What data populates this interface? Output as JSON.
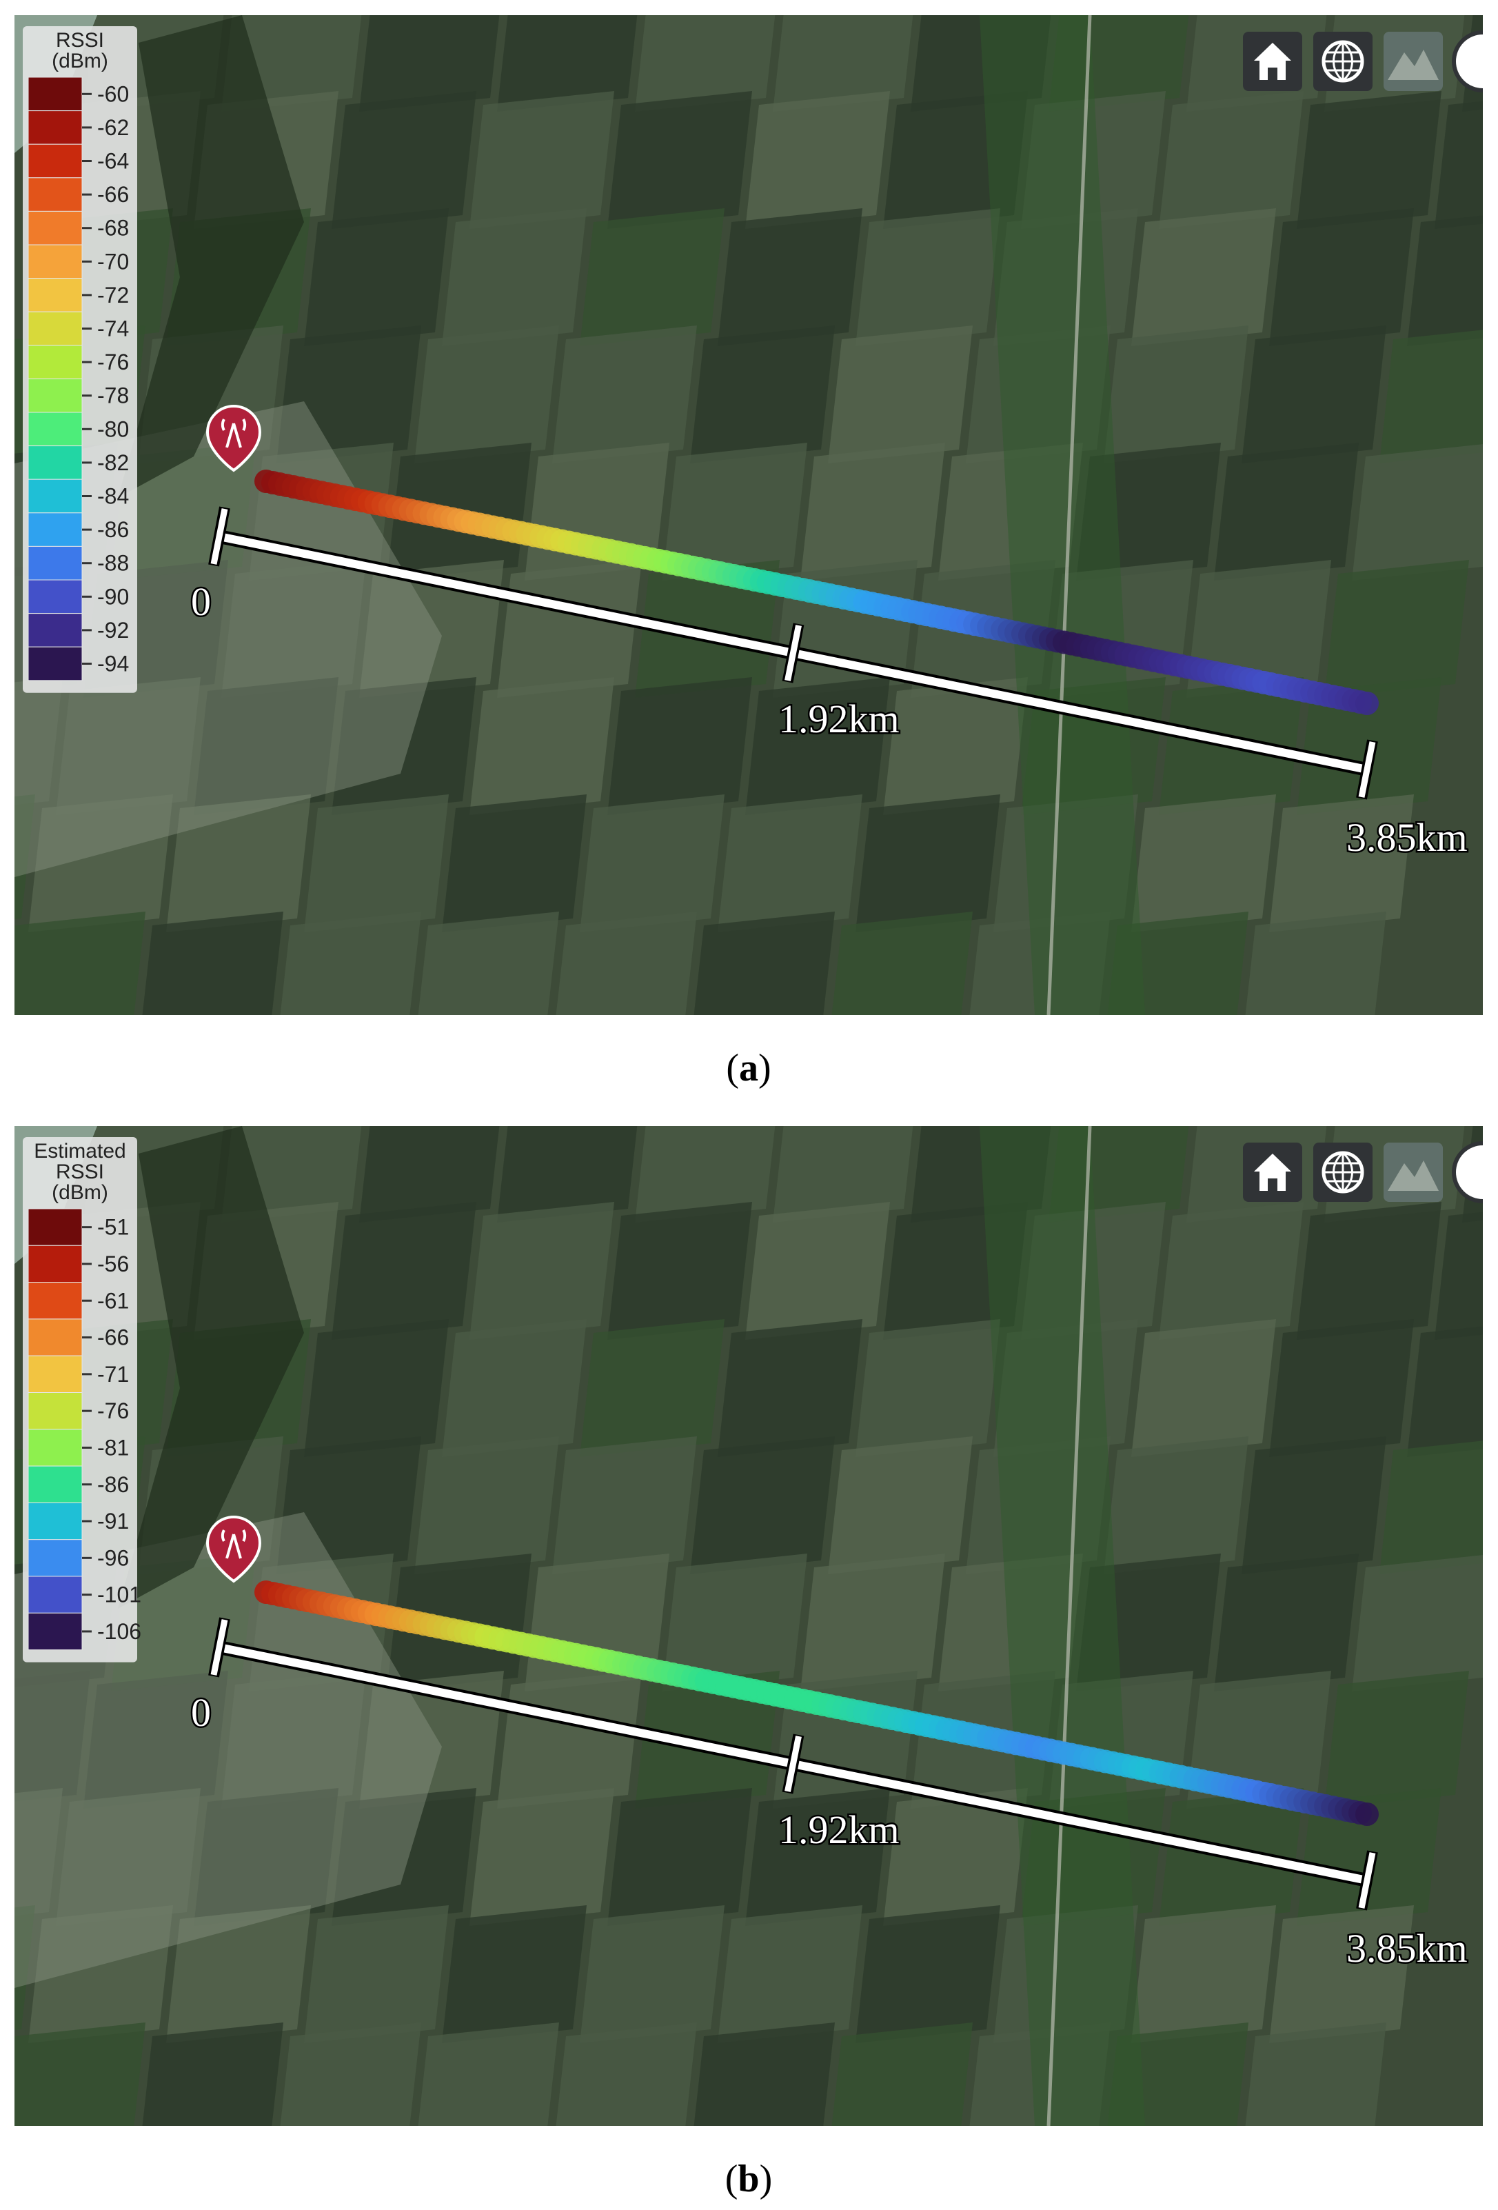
{
  "panels": [
    {
      "legend": {
        "title": [
          "RSSI",
          "(dBm)"
        ],
        "entries": [
          {
            "label": "-60",
            "color": "#6e0b0b"
          },
          {
            "label": "-62",
            "color": "#a3150c"
          },
          {
            "label": "-64",
            "color": "#c92a0d"
          },
          {
            "label": "-66",
            "color": "#e2541a"
          },
          {
            "label": "-68",
            "color": "#f07b2a"
          },
          {
            "label": "-70",
            "color": "#f5a33a"
          },
          {
            "label": "-72",
            "color": "#f2c441"
          },
          {
            "label": "-74",
            "color": "#d8d93a"
          },
          {
            "label": "-76",
            "color": "#b2ea3a"
          },
          {
            "label": "-78",
            "color": "#8ef04e"
          },
          {
            "label": "-80",
            "color": "#4ded7a"
          },
          {
            "label": "-82",
            "color": "#22d6a4"
          },
          {
            "label": "-84",
            "color": "#1fbfd6"
          },
          {
            "label": "-86",
            "color": "#2fa2ef"
          },
          {
            "label": "-88",
            "color": "#3d79ea"
          },
          {
            "label": "-90",
            "color": "#4351c9"
          },
          {
            "label": "-92",
            "color": "#3b2c8c"
          },
          {
            "label": "-94",
            "color": "#2b1650"
          }
        ]
      },
      "track_colors": [
        "#8a0f0f",
        "#c9300f",
        "#f0a03a",
        "#d8d93a",
        "#8ef04e",
        "#22d6a4",
        "#2fa2ef",
        "#3d79ea",
        "#2b1650",
        "#3b2c8c",
        "#4351c9",
        "#3b2c8c"
      ],
      "scale": [
        "0",
        "1.92km",
        "3.85km"
      ],
      "caption": {
        "open": "(",
        "letter": "a",
        "close": ")"
      }
    },
    {
      "legend": {
        "title": [
          "Estimated",
          "RSSI",
          "(dBm)"
        ],
        "entries": [
          {
            "label": "-51",
            "color": "#6e0b0b"
          },
          {
            "label": "-56",
            "color": "#b51c0c"
          },
          {
            "label": "-61",
            "color": "#df4a16"
          },
          {
            "label": "-66",
            "color": "#f0892d"
          },
          {
            "label": "-71",
            "color": "#f2c441"
          },
          {
            "label": "-76",
            "color": "#c5e23a"
          },
          {
            "label": "-81",
            "color": "#8ef04e"
          },
          {
            "label": "-86",
            "color": "#2ee08f"
          },
          {
            "label": "-91",
            "color": "#1fbfd6"
          },
          {
            "label": "-96",
            "color": "#3a8cef"
          },
          {
            "label": "-101",
            "color": "#4351c9"
          },
          {
            "label": "-106",
            "color": "#2b1650"
          }
        ]
      },
      "track_colors": [
        "#b51c0c",
        "#f0892d",
        "#c5e23a",
        "#8ef04e",
        "#2ee08f",
        "#2ee08f",
        "#1fbfd6",
        "#3a8cef",
        "#1fbfd6",
        "#3d79ea",
        "#2b1650"
      ],
      "scale": [
        "0",
        "1.92km",
        "3.85km"
      ],
      "caption": {
        "open": "(",
        "letter": "b",
        "close": ")"
      }
    }
  ]
}
